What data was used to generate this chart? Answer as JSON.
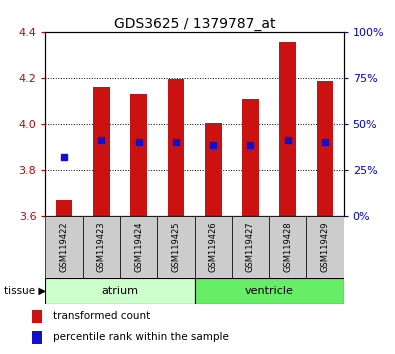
{
  "title": "GDS3625 / 1379787_at",
  "samples": [
    "GSM119422",
    "GSM119423",
    "GSM119424",
    "GSM119425",
    "GSM119426",
    "GSM119427",
    "GSM119428",
    "GSM119429"
  ],
  "red_top": [
    3.67,
    4.16,
    4.13,
    4.195,
    4.003,
    4.11,
    4.355,
    4.185
  ],
  "blue_y": [
    3.855,
    3.928,
    3.922,
    3.922,
    3.908,
    3.91,
    3.93,
    3.922
  ],
  "y_min": 3.6,
  "y_max": 4.4,
  "y_ticks_left": [
    3.6,
    3.8,
    4.0,
    4.2,
    4.4
  ],
  "y_ticks_right": [
    0,
    25,
    50,
    75,
    100
  ],
  "bar_color": "#cc1111",
  "dot_color": "#1111cc",
  "bar_baseline": 3.6,
  "bar_width": 0.45,
  "dot_size": 18,
  "atrium_color": "#ccffcc",
  "ventricle_color": "#66ee66",
  "tissue_label": "tissue",
  "atrium_label": "atrium",
  "ventricle_label": "ventricle",
  "legend_red": "transformed count",
  "legend_blue": "percentile rank within the sample",
  "left_axis_color": "#cc0000",
  "right_axis_color": "#0000cc",
  "title_fontsize": 10,
  "tick_fontsize": 8,
  "sample_fontsize": 6,
  "tissue_fontsize": 8,
  "legend_fontsize": 7.5
}
